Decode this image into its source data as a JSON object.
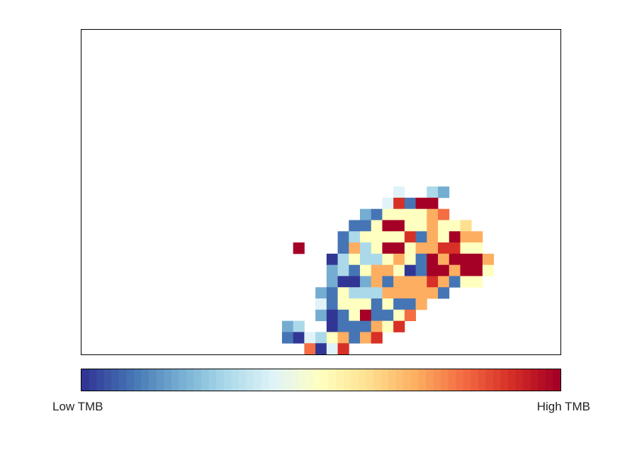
{
  "chart_data": {
    "type": "heatmap",
    "grid": {
      "cols": 43,
      "rows": 29,
      "row_labels": [],
      "col_labels": []
    },
    "value_scale": "0 = lowest TMB (dark blue), 10 = highest TMB (dark red)",
    "colormap": [
      "#313695",
      "#4575b4",
      "#74add1",
      "#abd9e9",
      "#e0f3f8",
      "#ffffbf",
      "#fee090",
      "#fdae61",
      "#f46d43",
      "#d73027",
      "#a50026"
    ],
    "cells": [
      {
        "col": 28,
        "row": 14,
        "v": 4
      },
      {
        "col": 31,
        "row": 14,
        "v": 3
      },
      {
        "col": 32,
        "row": 14,
        "v": 2
      },
      {
        "col": 27,
        "row": 15,
        "v": 4
      },
      {
        "col": 28,
        "row": 15,
        "v": 9
      },
      {
        "col": 29,
        "row": 15,
        "v": 1
      },
      {
        "col": 30,
        "row": 15,
        "v": 10
      },
      {
        "col": 31,
        "row": 15,
        "v": 10
      },
      {
        "col": 25,
        "row": 16,
        "v": 2
      },
      {
        "col": 26,
        "row": 16,
        "v": 1
      },
      {
        "col": 27,
        "row": 16,
        "v": 5
      },
      {
        "col": 28,
        "row": 16,
        "v": 5
      },
      {
        "col": 29,
        "row": 16,
        "v": 5
      },
      {
        "col": 30,
        "row": 16,
        "v": 5
      },
      {
        "col": 31,
        "row": 16,
        "v": 7
      },
      {
        "col": 32,
        "row": 16,
        "v": 8
      },
      {
        "col": 24,
        "row": 17,
        "v": 1
      },
      {
        "col": 25,
        "row": 17,
        "v": 1
      },
      {
        "col": 26,
        "row": 17,
        "v": 5
      },
      {
        "col": 27,
        "row": 17,
        "v": 10
      },
      {
        "col": 28,
        "row": 17,
        "v": 10
      },
      {
        "col": 29,
        "row": 17,
        "v": 5
      },
      {
        "col": 30,
        "row": 17,
        "v": 5
      },
      {
        "col": 31,
        "row": 17,
        "v": 7
      },
      {
        "col": 32,
        "row": 17,
        "v": 5
      },
      {
        "col": 33,
        "row": 17,
        "v": 5
      },
      {
        "col": 34,
        "row": 17,
        "v": 6
      },
      {
        "col": 23,
        "row": 18,
        "v": 1
      },
      {
        "col": 24,
        "row": 18,
        "v": 3
      },
      {
        "col": 25,
        "row": 18,
        "v": 5
      },
      {
        "col": 26,
        "row": 18,
        "v": 5
      },
      {
        "col": 27,
        "row": 18,
        "v": 5
      },
      {
        "col": 28,
        "row": 18,
        "v": 5
      },
      {
        "col": 29,
        "row": 18,
        "v": 9
      },
      {
        "col": 30,
        "row": 18,
        "v": 1
      },
      {
        "col": 31,
        "row": 18,
        "v": 7
      },
      {
        "col": 32,
        "row": 18,
        "v": 5
      },
      {
        "col": 33,
        "row": 18,
        "v": 10
      },
      {
        "col": 34,
        "row": 18,
        "v": 7
      },
      {
        "col": 35,
        "row": 18,
        "v": 7
      },
      {
        "col": 19,
        "row": 19,
        "v": 10
      },
      {
        "col": 23,
        "row": 19,
        "v": 1
      },
      {
        "col": 24,
        "row": 19,
        "v": 7
      },
      {
        "col": 25,
        "row": 19,
        "v": 3
      },
      {
        "col": 26,
        "row": 19,
        "v": 5
      },
      {
        "col": 27,
        "row": 19,
        "v": 10
      },
      {
        "col": 28,
        "row": 19,
        "v": 10
      },
      {
        "col": 29,
        "row": 19,
        "v": 5
      },
      {
        "col": 30,
        "row": 19,
        "v": 7
      },
      {
        "col": 31,
        "row": 19,
        "v": 7
      },
      {
        "col": 32,
        "row": 19,
        "v": 9
      },
      {
        "col": 33,
        "row": 19,
        "v": 9
      },
      {
        "col": 34,
        "row": 19,
        "v": 5
      },
      {
        "col": 35,
        "row": 19,
        "v": 5
      },
      {
        "col": 22,
        "row": 20,
        "v": 0
      },
      {
        "col": 23,
        "row": 20,
        "v": 3
      },
      {
        "col": 24,
        "row": 20,
        "v": 5
      },
      {
        "col": 25,
        "row": 20,
        "v": 3
      },
      {
        "col": 26,
        "row": 20,
        "v": 3
      },
      {
        "col": 27,
        "row": 20,
        "v": 5
      },
      {
        "col": 28,
        "row": 20,
        "v": 7
      },
      {
        "col": 29,
        "row": 20,
        "v": 5
      },
      {
        "col": 30,
        "row": 20,
        "v": 1
      },
      {
        "col": 31,
        "row": 20,
        "v": 10
      },
      {
        "col": 32,
        "row": 20,
        "v": 7
      },
      {
        "col": 33,
        "row": 20,
        "v": 10
      },
      {
        "col": 34,
        "row": 20,
        "v": 10
      },
      {
        "col": 35,
        "row": 20,
        "v": 10
      },
      {
        "col": 36,
        "row": 20,
        "v": 7
      },
      {
        "col": 22,
        "row": 21,
        "v": 2
      },
      {
        "col": 23,
        "row": 21,
        "v": 3
      },
      {
        "col": 24,
        "row": 21,
        "v": 1
      },
      {
        "col": 25,
        "row": 21,
        "v": 5
      },
      {
        "col": 26,
        "row": 21,
        "v": 7
      },
      {
        "col": 27,
        "row": 21,
        "v": 7
      },
      {
        "col": 28,
        "row": 21,
        "v": 5
      },
      {
        "col": 29,
        "row": 21,
        "v": 0
      },
      {
        "col": 30,
        "row": 21,
        "v": 1
      },
      {
        "col": 31,
        "row": 21,
        "v": 10
      },
      {
        "col": 32,
        "row": 21,
        "v": 10
      },
      {
        "col": 33,
        "row": 21,
        "v": 7
      },
      {
        "col": 34,
        "row": 21,
        "v": 10
      },
      {
        "col": 35,
        "row": 21,
        "v": 10
      },
      {
        "col": 36,
        "row": 21,
        "v": 5
      },
      {
        "col": 22,
        "row": 22,
        "v": 2
      },
      {
        "col": 23,
        "row": 22,
        "v": 0
      },
      {
        "col": 24,
        "row": 22,
        "v": 0
      },
      {
        "col": 25,
        "row": 22,
        "v": 2
      },
      {
        "col": 26,
        "row": 22,
        "v": 7
      },
      {
        "col": 27,
        "row": 22,
        "v": 1
      },
      {
        "col": 28,
        "row": 22,
        "v": 7
      },
      {
        "col": 29,
        "row": 22,
        "v": 7
      },
      {
        "col": 30,
        "row": 22,
        "v": 7
      },
      {
        "col": 31,
        "row": 22,
        "v": 9
      },
      {
        "col": 32,
        "row": 22,
        "v": 7
      },
      {
        "col": 33,
        "row": 22,
        "v": 1
      },
      {
        "col": 34,
        "row": 22,
        "v": 5
      },
      {
        "col": 35,
        "row": 22,
        "v": 5
      },
      {
        "col": 21,
        "row": 23,
        "v": 2
      },
      {
        "col": 22,
        "row": 23,
        "v": 1
      },
      {
        "col": 23,
        "row": 23,
        "v": 5
      },
      {
        "col": 24,
        "row": 23,
        "v": 3
      },
      {
        "col": 25,
        "row": 23,
        "v": 3
      },
      {
        "col": 26,
        "row": 23,
        "v": 3
      },
      {
        "col": 27,
        "row": 23,
        "v": 7
      },
      {
        "col": 28,
        "row": 23,
        "v": 7
      },
      {
        "col": 29,
        "row": 23,
        "v": 7
      },
      {
        "col": 30,
        "row": 23,
        "v": 7
      },
      {
        "col": 31,
        "row": 23,
        "v": 7
      },
      {
        "col": 32,
        "row": 23,
        "v": 1
      },
      {
        "col": 21,
        "row": 24,
        "v": 4
      },
      {
        "col": 22,
        "row": 24,
        "v": 1
      },
      {
        "col": 23,
        "row": 24,
        "v": 5
      },
      {
        "col": 24,
        "row": 24,
        "v": 5
      },
      {
        "col": 25,
        "row": 24,
        "v": 5
      },
      {
        "col": 26,
        "row": 24,
        "v": 1
      },
      {
        "col": 27,
        "row": 24,
        "v": 5
      },
      {
        "col": 28,
        "row": 24,
        "v": 1
      },
      {
        "col": 29,
        "row": 24,
        "v": 1
      },
      {
        "col": 30,
        "row": 24,
        "v": 7
      },
      {
        "col": 21,
        "row": 25,
        "v": 2
      },
      {
        "col": 22,
        "row": 25,
        "v": 0
      },
      {
        "col": 23,
        "row": 25,
        "v": 1
      },
      {
        "col": 24,
        "row": 25,
        "v": 5
      },
      {
        "col": 25,
        "row": 25,
        "v": 10
      },
      {
        "col": 26,
        "row": 25,
        "v": 1
      },
      {
        "col": 27,
        "row": 25,
        "v": 1
      },
      {
        "col": 28,
        "row": 25,
        "v": 5
      },
      {
        "col": 29,
        "row": 25,
        "v": 8
      },
      {
        "col": 18,
        "row": 26,
        "v": 2
      },
      {
        "col": 19,
        "row": 26,
        "v": 3
      },
      {
        "col": 22,
        "row": 26,
        "v": 0
      },
      {
        "col": 23,
        "row": 26,
        "v": 1
      },
      {
        "col": 24,
        "row": 26,
        "v": 1
      },
      {
        "col": 25,
        "row": 26,
        "v": 1
      },
      {
        "col": 26,
        "row": 26,
        "v": 7
      },
      {
        "col": 27,
        "row": 26,
        "v": 5
      },
      {
        "col": 28,
        "row": 26,
        "v": 9
      },
      {
        "col": 18,
        "row": 27,
        "v": 1
      },
      {
        "col": 19,
        "row": 27,
        "v": 0
      },
      {
        "col": 20,
        "row": 27,
        "v": 4
      },
      {
        "col": 21,
        "row": 27,
        "v": 3
      },
      {
        "col": 22,
        "row": 27,
        "v": 5
      },
      {
        "col": 23,
        "row": 27,
        "v": 7
      },
      {
        "col": 24,
        "row": 27,
        "v": 1
      },
      {
        "col": 25,
        "row": 27,
        "v": 7
      },
      {
        "col": 26,
        "row": 27,
        "v": 9
      },
      {
        "col": 20,
        "row": 28,
        "v": 8
      },
      {
        "col": 21,
        "row": 28,
        "v": 0
      },
      {
        "col": 22,
        "row": 28,
        "v": 4
      },
      {
        "col": 23,
        "row": 28,
        "v": 9
      }
    ],
    "colorbar": {
      "low_label": "Low TMB",
      "high_label": "High TMB"
    },
    "xlabel": "",
    "ylabel": "",
    "title": ""
  }
}
